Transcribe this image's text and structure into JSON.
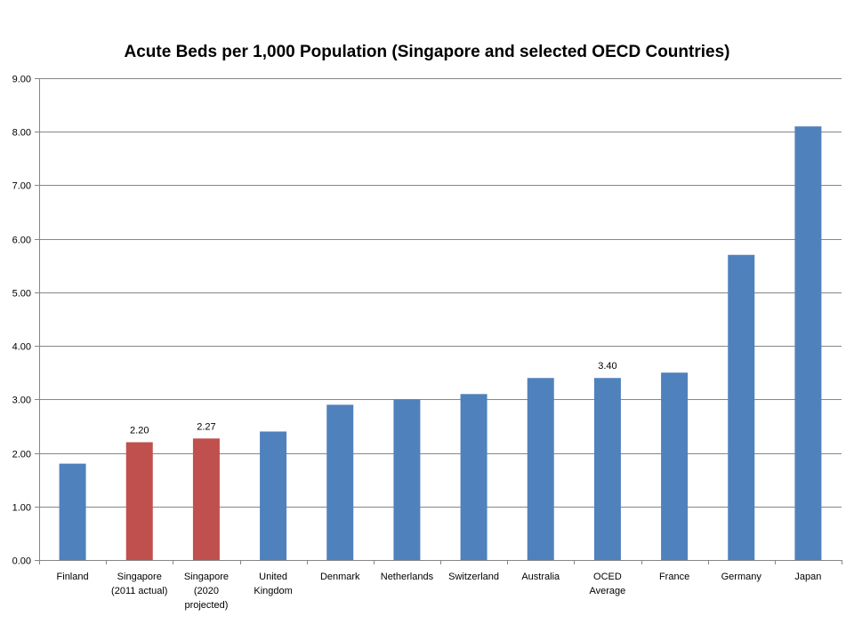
{
  "chart_data": {
    "type": "bar",
    "title": "Acute Beds per 1,000 Population (Singapore and selected OECD Countries)",
    "xlabel": "",
    "ylabel": "",
    "ylim": [
      0,
      9
    ],
    "yticks": [
      "0.00",
      "1.00",
      "2.00",
      "3.00",
      "4.00",
      "5.00",
      "6.00",
      "7.00",
      "8.00",
      "9.00"
    ],
    "grid": true,
    "legend": "none",
    "categories": [
      [
        "Finland"
      ],
      [
        "Singapore",
        "(2011 actual)"
      ],
      [
        "Singapore",
        "(2020",
        "projected)"
      ],
      [
        "United",
        "Kingdom"
      ],
      [
        "Denmark"
      ],
      [
        "Netherlands"
      ],
      [
        "Switzerland"
      ],
      [
        "Australia"
      ],
      [
        "OCED",
        "Average"
      ],
      [
        "France"
      ],
      [
        "Germany"
      ],
      [
        "Japan"
      ]
    ],
    "values": [
      1.8,
      2.2,
      2.27,
      2.4,
      2.9,
      3.0,
      3.1,
      3.4,
      3.4,
      3.5,
      5.7,
      8.1
    ],
    "data_labels": [
      "",
      "2.20",
      "2.27",
      "",
      "",
      "",
      "",
      "",
      "3.40",
      "",
      "",
      ""
    ],
    "colors": [
      "#4f81bd",
      "#c0504d",
      "#c0504d",
      "#4f81bd",
      "#4f81bd",
      "#4f81bd",
      "#4f81bd",
      "#4f81bd",
      "#4f81bd",
      "#4f81bd",
      "#4f81bd",
      "#4f81bd"
    ],
    "gridline_color": "#868686",
    "axis_color": "#868686"
  }
}
